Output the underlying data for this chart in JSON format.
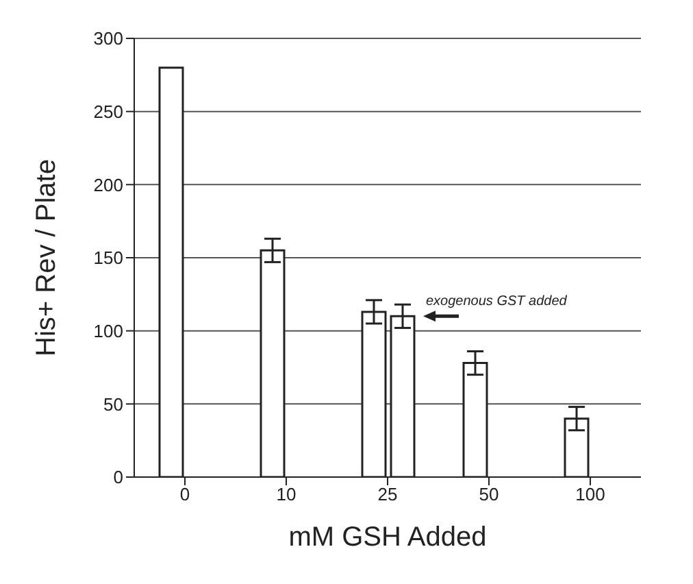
{
  "chart_data": {
    "type": "bar",
    "xlabel": "mM GSH Added",
    "ylabel": "His+ Rev / Plate",
    "categories": [
      "0",
      "10",
      "25",
      "50",
      "100"
    ],
    "series": [
      {
        "color": "#ffffff",
        "values": [
          280,
          155,
          113,
          78,
          40
        ],
        "errors": [
          null,
          8,
          8,
          8,
          8
        ]
      },
      {
        "color": "#ffffff",
        "values": [
          null,
          null,
          110,
          null,
          null
        ],
        "errors": [
          null,
          null,
          8,
          null,
          null
        ]
      }
    ],
    "ylim": [
      0,
      300
    ],
    "yticks": [
      0,
      50,
      100,
      150,
      200,
      250,
      300
    ],
    "grid": "y",
    "legend": false,
    "annotations": [
      {
        "text": "exogenous GST added",
        "x": "25",
        "y": 110
      }
    ]
  }
}
